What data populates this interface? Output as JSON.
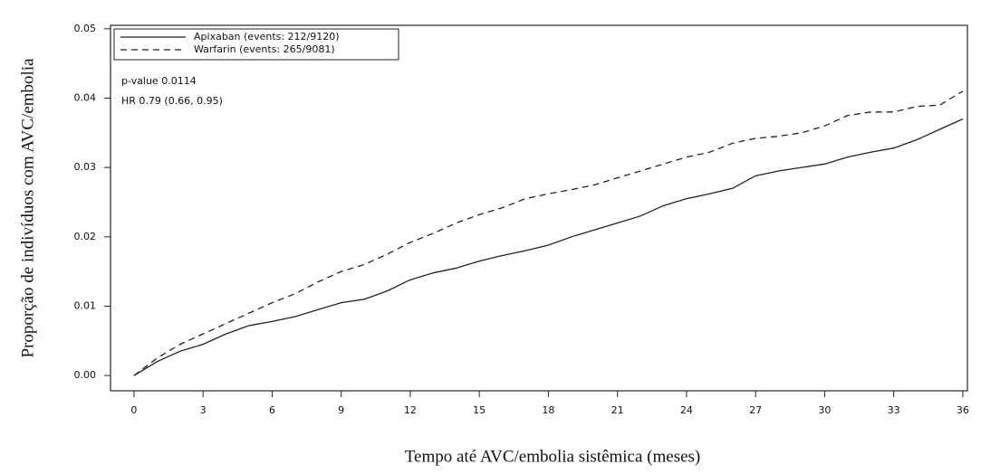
{
  "chart_data": {
    "type": "line",
    "x_label": "Tempo até AVC/embolia sistêmica (meses)",
    "y_label": "Proporção de indivíduos com AVC/embolia",
    "annotations": [
      "p-value 0.0114",
      "HR 0.79 (0.66, 0.95)"
    ],
    "legend": "upper left",
    "x": [
      0,
      1,
      2,
      3,
      4,
      5,
      6,
      7,
      8,
      9,
      10,
      11,
      12,
      13,
      14,
      15,
      16,
      17,
      18,
      19,
      20,
      21,
      22,
      23,
      24,
      25,
      26,
      27,
      28,
      29,
      30,
      31,
      32,
      33,
      34,
      35,
      36
    ],
    "series": [
      {
        "name": "Apixaban (events: 212/9120)",
        "color": "#222222",
        "line_style": "solid",
        "values": [
          0,
          0.002,
          0.0035,
          0.0045,
          0.006,
          0.0072,
          0.0078,
          0.0085,
          0.0095,
          0.0105,
          0.011,
          0.0122,
          0.0138,
          0.0148,
          0.0155,
          0.0165,
          0.0173,
          0.018,
          0.0188,
          0.02,
          0.021,
          0.022,
          0.023,
          0.0245,
          0.0255,
          0.0262,
          0.027,
          0.0288,
          0.0295,
          0.03,
          0.0305,
          0.0315,
          0.0322,
          0.0328,
          0.034,
          0.0355,
          0.037
        ]
      },
      {
        "name": "Warfarin (events: 265/9081)",
        "color": "#222222",
        "line_style": "dashed",
        "values": [
          0,
          0.0025,
          0.0045,
          0.006,
          0.0075,
          0.009,
          0.0105,
          0.0118,
          0.0135,
          0.015,
          0.016,
          0.0175,
          0.0192,
          0.0205,
          0.022,
          0.0232,
          0.0242,
          0.0255,
          0.0262,
          0.0268,
          0.0275,
          0.0285,
          0.0295,
          0.0305,
          0.0315,
          0.0322,
          0.0335,
          0.0342,
          0.0345,
          0.035,
          0.036,
          0.0375,
          0.038,
          0.038,
          0.0388,
          0.039,
          0.041
        ]
      }
    ],
    "xlim": [
      -1.02,
      36.2
    ],
    "xticks": [
      0,
      3,
      6,
      9,
      12,
      15,
      18,
      21,
      24,
      27,
      30,
      33,
      36
    ],
    "ylim": [
      -0.0022,
      0.0505
    ],
    "yticks": [
      {
        "value": 0,
        "label": "0.00"
      },
      0.01,
      0.02,
      0.03,
      0.04,
      0.05
    ],
    "grid": false
  }
}
